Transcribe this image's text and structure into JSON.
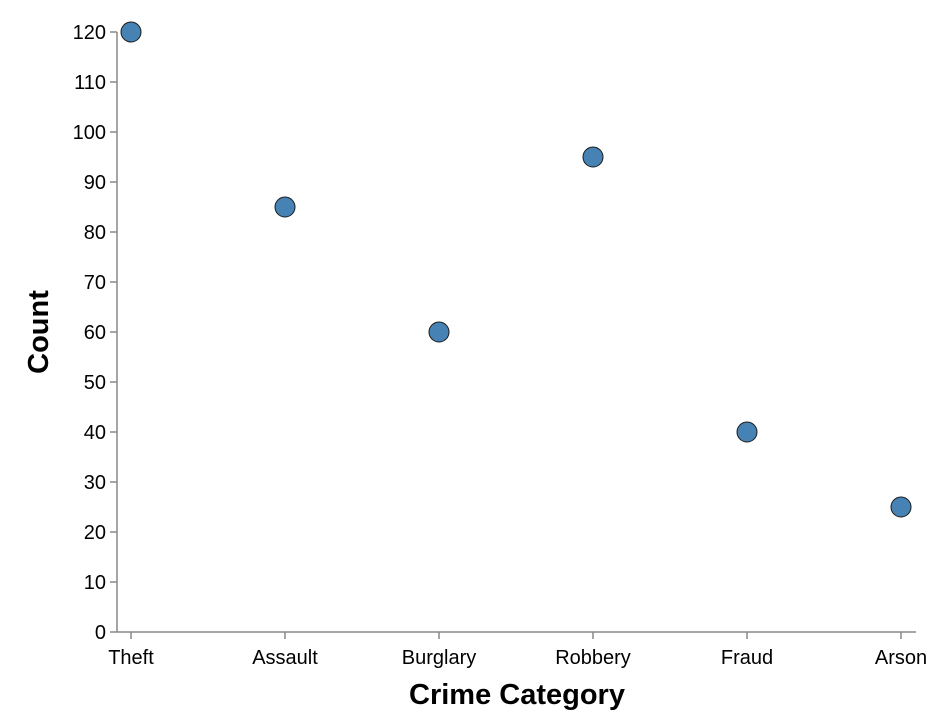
{
  "chart_data": {
    "type": "scatter",
    "categories": [
      "Theft",
      "Assault",
      "Burglary",
      "Robbery",
      "Fraud",
      "Arson"
    ],
    "values": [
      120,
      85,
      60,
      95,
      40,
      25
    ],
    "title": "",
    "xlabel": "Crime Category",
    "ylabel": "Count",
    "ylim": [
      0,
      120
    ],
    "yticks": [
      0,
      10,
      20,
      30,
      40,
      50,
      60,
      70,
      80,
      90,
      100,
      110,
      120
    ],
    "grid": false,
    "legend": "none"
  },
  "colors": {
    "point_fill": "#4682b4",
    "point_stroke": "#1a1a1a",
    "axis": "#888888"
  }
}
